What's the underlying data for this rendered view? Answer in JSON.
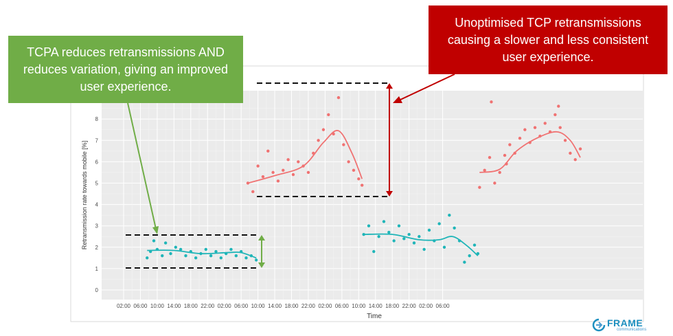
{
  "chart_data": {
    "type": "scatter",
    "xlabel": "Time",
    "ylabel": "Retransmission rate towards mobile [%]",
    "ylim": [
      0,
      9
    ],
    "yticks": [
      0,
      1,
      2,
      3,
      4,
      5,
      6,
      7,
      8
    ],
    "xticks": [
      "02:00",
      "06:00",
      "10:00",
      "14:00",
      "18:00",
      "22:00",
      "02:00",
      "06:00",
      "10:00",
      "14:00",
      "18:00",
      "22:00",
      "02:00",
      "06:00",
      "10:00",
      "14:00",
      "18:00",
      "22:00",
      "02:00",
      "06:00"
    ],
    "grid": true,
    "series": [
      {
        "color": "#1fb5b8",
        "points": [
          [
            1.4,
            1.5
          ],
          [
            1.6,
            1.8
          ],
          [
            1.8,
            2.3
          ],
          [
            2.0,
            1.9
          ],
          [
            2.3,
            1.6
          ],
          [
            2.5,
            2.2
          ],
          [
            2.8,
            1.7
          ],
          [
            3.1,
            2.0
          ],
          [
            3.4,
            1.9
          ],
          [
            3.7,
            1.6
          ],
          [
            4.0,
            1.8
          ],
          [
            4.3,
            1.5
          ],
          [
            4.6,
            1.7
          ],
          [
            4.9,
            1.9
          ],
          [
            5.2,
            1.6
          ],
          [
            5.5,
            1.8
          ],
          [
            5.8,
            1.5
          ],
          [
            6.1,
            1.7
          ],
          [
            6.4,
            1.9
          ],
          [
            6.7,
            1.6
          ],
          [
            7.0,
            1.8
          ],
          [
            7.3,
            1.5
          ],
          [
            7.6,
            1.6
          ],
          [
            7.9,
            1.4
          ]
        ],
        "fit": [
          [
            1.4,
            1.85
          ],
          [
            3.0,
            1.85
          ],
          [
            4.6,
            1.7
          ],
          [
            6.2,
            1.75
          ],
          [
            7.0,
            1.75
          ],
          [
            7.9,
            1.5
          ]
        ]
      },
      {
        "color": "#f07272",
        "points": [
          [
            7.4,
            5.0
          ],
          [
            7.7,
            4.6
          ],
          [
            8.0,
            5.8
          ],
          [
            8.3,
            5.3
          ],
          [
            8.6,
            6.5
          ],
          [
            8.9,
            5.5
          ],
          [
            9.2,
            5.1
          ],
          [
            9.5,
            5.6
          ],
          [
            9.8,
            6.1
          ],
          [
            10.1,
            5.4
          ],
          [
            10.4,
            6.0
          ],
          [
            10.7,
            5.8
          ],
          [
            11.0,
            5.5
          ],
          [
            11.3,
            6.4
          ],
          [
            11.6,
            7.0
          ],
          [
            11.9,
            7.5
          ],
          [
            12.2,
            8.2
          ],
          [
            12.5,
            7.3
          ],
          [
            12.8,
            9.0
          ],
          [
            13.1,
            6.8
          ],
          [
            13.4,
            6.0
          ],
          [
            13.7,
            5.6
          ],
          [
            14.0,
            5.2
          ],
          [
            14.2,
            4.9
          ]
        ],
        "fit": [
          [
            7.4,
            5.0
          ],
          [
            9.0,
            5.35
          ],
          [
            10.7,
            5.8
          ],
          [
            11.9,
            6.9
          ],
          [
            12.8,
            7.45
          ],
          [
            13.6,
            6.4
          ],
          [
            14.2,
            5.2
          ]
        ]
      },
      {
        "color": "#1fb5b8",
        "points": [
          [
            14.3,
            2.6
          ],
          [
            14.6,
            3.0
          ],
          [
            14.9,
            1.8
          ],
          [
            15.2,
            2.5
          ],
          [
            15.5,
            3.2
          ],
          [
            15.8,
            2.7
          ],
          [
            16.1,
            2.3
          ],
          [
            16.4,
            3.0
          ],
          [
            16.7,
            2.4
          ],
          [
            17.0,
            2.6
          ],
          [
            17.3,
            2.2
          ],
          [
            17.6,
            2.5
          ],
          [
            17.9,
            1.9
          ],
          [
            18.2,
            2.8
          ],
          [
            18.5,
            2.3
          ],
          [
            18.8,
            3.1
          ],
          [
            19.1,
            2.0
          ],
          [
            19.4,
            3.5
          ],
          [
            19.7,
            2.9
          ],
          [
            20.0,
            2.3
          ],
          [
            20.3,
            1.3
          ],
          [
            20.6,
            1.6
          ],
          [
            20.9,
            2.1
          ],
          [
            21.1,
            1.7
          ]
        ],
        "fit": [
          [
            14.3,
            2.6
          ],
          [
            16.0,
            2.6
          ],
          [
            17.6,
            2.35
          ],
          [
            18.8,
            2.35
          ],
          [
            19.6,
            2.5
          ],
          [
            20.4,
            2.1
          ],
          [
            21.1,
            1.6
          ]
        ]
      },
      {
        "color": "#f07272",
        "points": [
          [
            21.2,
            4.8
          ],
          [
            21.5,
            5.6
          ],
          [
            21.8,
            6.2
          ],
          [
            22.1,
            5.0
          ],
          [
            22.4,
            5.5
          ],
          [
            22.7,
            6.3
          ],
          [
            23.0,
            6.8
          ],
          [
            23.3,
            6.4
          ],
          [
            23.6,
            7.1
          ],
          [
            23.9,
            7.5
          ],
          [
            24.2,
            6.9
          ],
          [
            24.5,
            7.6
          ],
          [
            24.8,
            7.2
          ],
          [
            25.1,
            7.8
          ],
          [
            25.4,
            7.4
          ],
          [
            25.7,
            8.2
          ],
          [
            26.0,
            7.6
          ],
          [
            26.3,
            7.0
          ],
          [
            26.6,
            6.4
          ],
          [
            26.9,
            6.1
          ],
          [
            27.2,
            6.6
          ],
          [
            21.9,
            8.8
          ],
          [
            25.9,
            8.6
          ],
          [
            22.8,
            5.9
          ]
        ],
        "fit": [
          [
            21.2,
            5.5
          ],
          [
            22.4,
            5.65
          ],
          [
            23.4,
            6.5
          ],
          [
            24.6,
            7.1
          ],
          [
            25.8,
            7.4
          ],
          [
            26.6,
            7.0
          ],
          [
            27.2,
            6.2
          ]
        ]
      }
    ]
  },
  "callouts": {
    "green": "TCPA reduces retransmissions AND reduces variation, giving an improved user experience.",
    "red": "Unoptimised TCP retransmissions causing a slower and less consistent user experience."
  },
  "logo": {
    "name": "FRAME",
    "sub": "communications"
  },
  "colors": {
    "teal": "#1fb5b8",
    "salmon": "#f07272",
    "green": "#70ad47",
    "red": "#c00000",
    "brand": "#1d8fbf"
  }
}
